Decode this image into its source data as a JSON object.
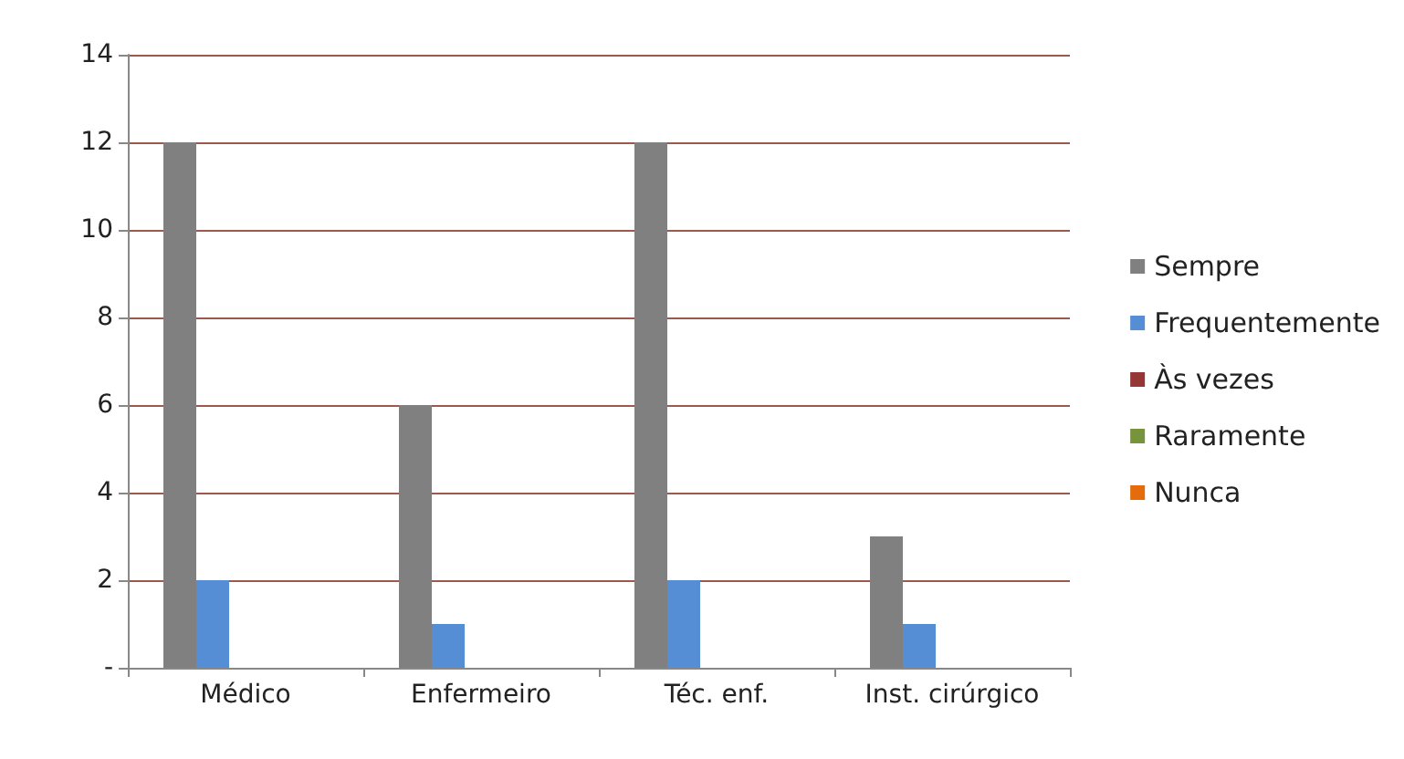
{
  "chart_data": {
    "type": "bar",
    "categories": [
      "Médico",
      "Enfermeiro",
      "Téc. enf.",
      "Inst. cirúrgico"
    ],
    "series": [
      {
        "name": "Sempre",
        "color": "#808080",
        "values": [
          12,
          6,
          12,
          3
        ]
      },
      {
        "name": "Frequentemente",
        "color": "#558ed5",
        "values": [
          2,
          1,
          2,
          1
        ]
      },
      {
        "name": "Às vezes",
        "color": "#953735",
        "values": [
          0,
          0,
          0,
          0
        ]
      },
      {
        "name": "Raramente",
        "color": "#77933c",
        "values": [
          0,
          0,
          0,
          0
        ]
      },
      {
        "name": "Nunca",
        "color": "#e46c0a",
        "values": [
          0,
          0,
          0,
          0
        ]
      }
    ],
    "ylim": [
      0,
      14
    ],
    "yticks": [
      {
        "value": 0,
        "label": "-"
      },
      2,
      4,
      6,
      8,
      10,
      12,
      14
    ],
    "grid": "y",
    "legend": "right"
  }
}
